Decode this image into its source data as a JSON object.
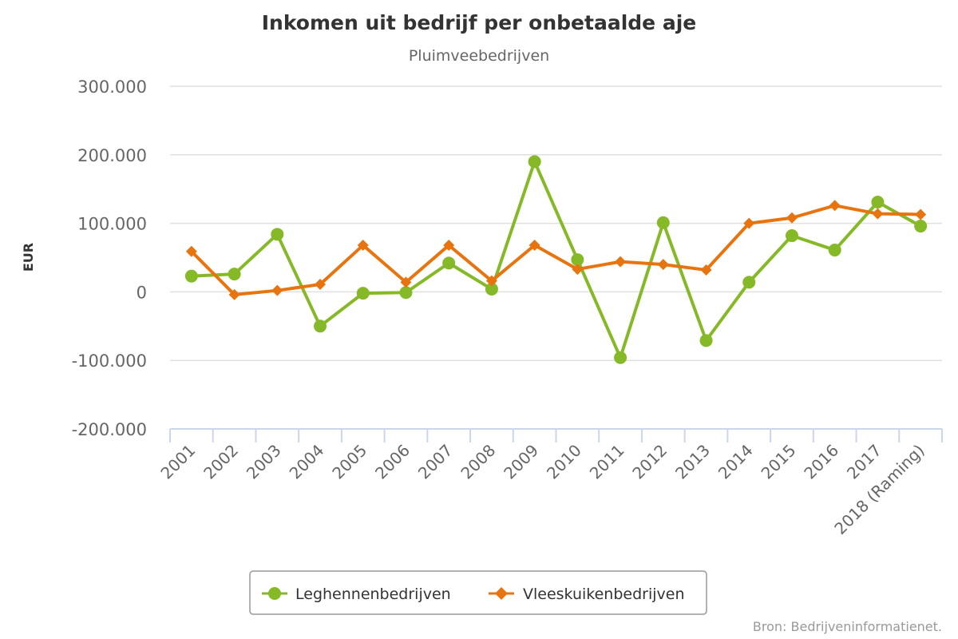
{
  "chart_data": {
    "type": "line",
    "title": "Inkomen uit bedrijf per onbetaalde aje",
    "subtitle": "Pluimveebedrijven",
    "ylabel": "EUR",
    "xlabel": "",
    "ylim": [
      -200000,
      300000
    ],
    "yticks": [
      -200000,
      -100000,
      0,
      100000,
      200000,
      300000
    ],
    "ytick_labels": [
      "-200.000",
      "-100.000",
      "0",
      "100.000",
      "200.000",
      "300.000"
    ],
    "categories": [
      "2001",
      "2002",
      "2003",
      "2004",
      "2005",
      "2006",
      "2007",
      "2008",
      "2009",
      "2010",
      "2011",
      "2012",
      "2013",
      "2014",
      "2015",
      "2016",
      "2017",
      "2018 (Raming)"
    ],
    "series": [
      {
        "name": "Leghennenbedrijven",
        "color": "#86b927",
        "marker": "circle",
        "values": [
          23000,
          26000,
          84000,
          -50000,
          -2000,
          -1000,
          42000,
          4000,
          190000,
          47000,
          -96000,
          101000,
          -71000,
          14000,
          82000,
          61000,
          131000,
          96000
        ]
      },
      {
        "name": "Vleeskuikenbedrijven",
        "color": "#e8740f",
        "marker": "diamond",
        "values": [
          59000,
          -4000,
          2000,
          11000,
          68000,
          14000,
          68000,
          16000,
          68000,
          33000,
          44000,
          40000,
          32000,
          100000,
          108000,
          126000,
          114000,
          113000
        ]
      }
    ],
    "grid": true,
    "legend": "bottom"
  },
  "credit": "Bron: Bedrijveninformatienet."
}
